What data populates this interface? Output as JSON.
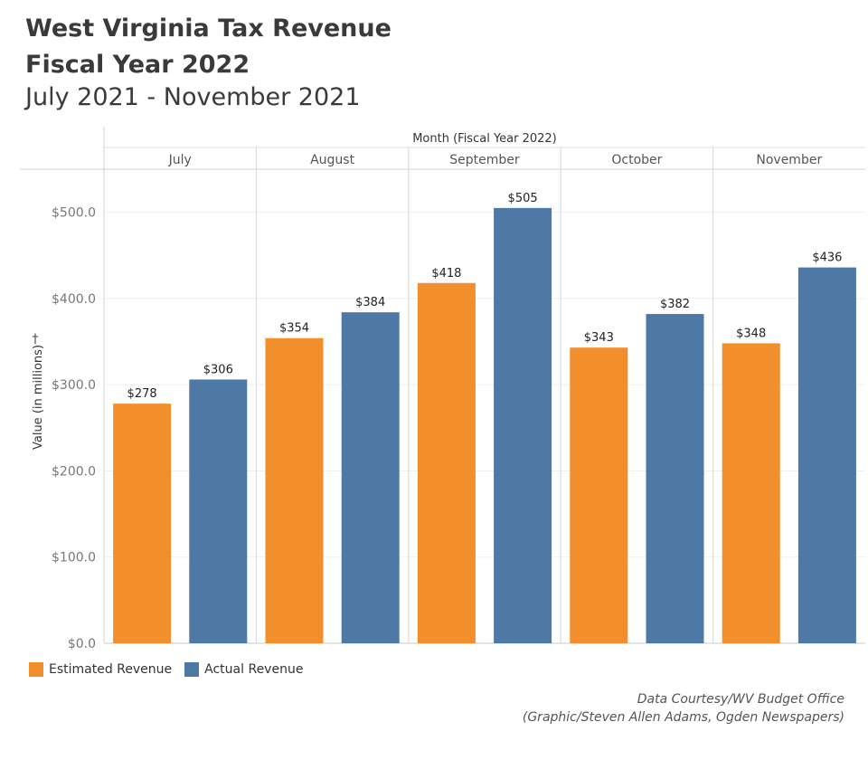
{
  "chart_data": {
    "type": "bar",
    "title": "West Virginia Tax Revenue",
    "title_line2": "Fiscal Year 2022",
    "subtitle": "July 2021 - November 2021",
    "column_header": "Month (Fiscal Year 2022)",
    "categories": [
      "July",
      "August",
      "September",
      "October",
      "November"
    ],
    "series": [
      {
        "name": "Estimated Revenue",
        "color": "#f28e2b",
        "values": [
          278,
          354,
          418,
          343,
          348
        ],
        "labels": [
          "$278",
          "$354",
          "$418",
          "$343",
          "$348"
        ]
      },
      {
        "name": "Actual Revenue",
        "color": "#4e79a7",
        "values": [
          306,
          384,
          505,
          382,
          436
        ],
        "labels": [
          "$306",
          "$384",
          "$505",
          "$382",
          "$436"
        ]
      }
    ],
    "ylabel": "Value (in millions)",
    "ylim": [
      0,
      550
    ],
    "yticks": [
      0,
      100,
      200,
      300,
      400,
      500
    ],
    "ytick_labels": [
      "$0.0",
      "$100.0",
      "$200.0",
      "$300.0",
      "$400.0",
      "$500.0"
    ],
    "grid": true,
    "legend_position": "bottom-left"
  },
  "credit": {
    "line1": "Data Courtesy/WV Budget Office",
    "line2": "(Graphic/Steven Allen Adams, Ogden Newspapers)"
  }
}
